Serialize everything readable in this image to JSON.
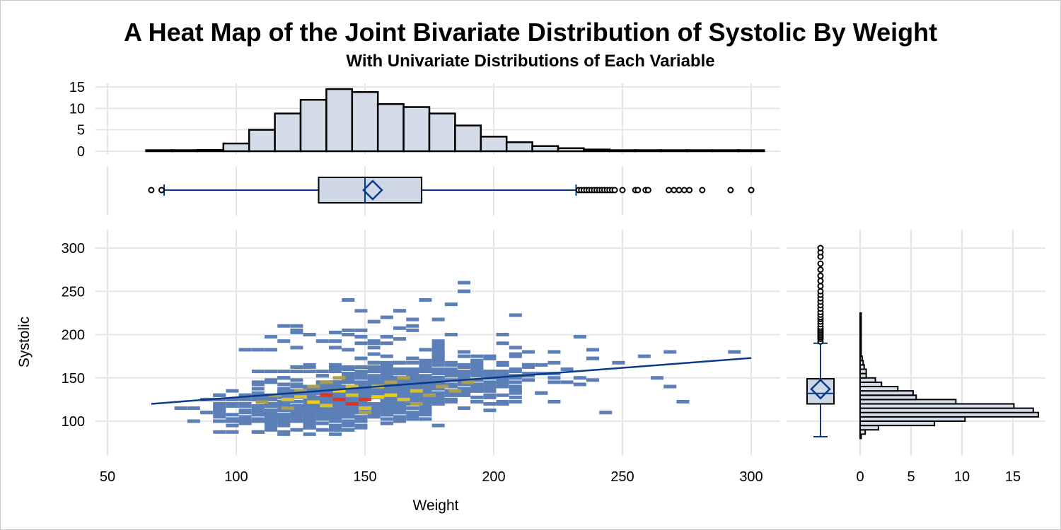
{
  "chart_data": {
    "type": "heatmap",
    "title": "A Heat Map of the Joint Bivariate Distribution of Systolic By Weight",
    "subtitle": "With Univariate Distributions of Each Variable",
    "xlabel": "Weight",
    "ylabel": "Systolic",
    "x_range": [
      50,
      300
    ],
    "y_range": [
      80,
      320
    ],
    "x_ticks": [
      "50",
      "100",
      "150",
      "200",
      "250",
      "300"
    ],
    "y_ticks": [
      "100",
      "150",
      "200",
      "250",
      "300"
    ],
    "grid": true,
    "colors": {
      "low": "#5b7fb6",
      "mid": "#a8a050",
      "high": "#f0d000",
      "peak": "#e8301a",
      "line": "#0a3a8c",
      "bar_fill": "#d4dcea"
    },
    "heat_cells": [
      [
        135,
        130,
        5
      ],
      [
        140,
        125,
        5
      ],
      [
        150,
        125,
        5
      ],
      [
        145,
        120,
        5
      ],
      [
        155,
        128,
        4
      ],
      [
        140,
        135,
        4
      ],
      [
        130,
        122,
        4
      ],
      [
        160,
        130,
        4
      ],
      [
        125,
        128,
        3
      ],
      [
        145,
        140,
        3
      ],
      [
        165,
        125,
        3
      ],
      [
        150,
        115,
        3
      ],
      [
        135,
        118,
        3
      ],
      [
        170,
        135,
        3
      ],
      [
        120,
        125,
        3
      ],
      [
        155,
        140,
        3
      ],
      [
        145,
        130,
        3
      ],
      [
        115,
        130,
        2
      ],
      [
        130,
        140,
        2
      ],
      [
        160,
        145,
        2
      ],
      [
        175,
        130,
        2
      ],
      [
        180,
        140,
        2
      ],
      [
        120,
        115,
        2
      ],
      [
        140,
        150,
        2
      ],
      [
        165,
        150,
        2
      ],
      [
        150,
        110,
        2
      ],
      [
        185,
        135,
        2
      ],
      [
        110,
        122,
        2
      ],
      [
        135,
        145,
        2
      ],
      [
        170,
        120,
        2
      ],
      [
        125,
        135,
        2
      ],
      [
        190,
        145,
        2
      ]
    ],
    "fit_line": {
      "x": [
        67,
        300
      ],
      "y": [
        120,
        173
      ]
    },
    "x_histogram": {
      "bin_start": 65,
      "bin_width": 10,
      "percents": [
        0.05,
        0.1,
        0.3,
        1.8,
        5.0,
        8.8,
        12.0,
        14.5,
        13.8,
        11.0,
        10.3,
        8.8,
        6.0,
        3.4,
        2.1,
        1.2,
        0.7,
        0.4,
        0.15,
        0.1,
        0.05,
        0.05,
        0.05,
        0.05
      ],
      "ticks": [
        "0",
        "5",
        "10",
        "15"
      ]
    },
    "x_box": {
      "whisker_low": 72,
      "q1": 132,
      "median": 150,
      "mean": 153,
      "q3": 172,
      "whisker_high": 232,
      "outliers": [
        67,
        71,
        233,
        234,
        235,
        236,
        237,
        238,
        239,
        240,
        241,
        242,
        243,
        244,
        245,
        246,
        247,
        250,
        255,
        256,
        259,
        260,
        268,
        270,
        272,
        274,
        276,
        281,
        292,
        300
      ]
    },
    "y_histogram": {
      "bin_start": 80,
      "bin_width": 5,
      "percents": [
        0.1,
        0.5,
        1.8,
        7.3,
        10.3,
        17.5,
        17.0,
        15.1,
        9.4,
        5.5,
        5.2,
        3.7,
        2.1,
        1.5,
        0.6,
        0.6,
        0.4,
        0.3,
        0.2,
        0.1,
        0.1,
        0.05,
        0.05,
        0.05,
        0.05,
        0.05,
        0.05,
        0.05,
        0.05
      ],
      "ticks": [
        "0",
        "5",
        "10",
        "15"
      ]
    },
    "y_box": {
      "whisker_low": 82,
      "q1": 120,
      "median": 132,
      "mean": 137,
      "q3": 149,
      "whisker_high": 190,
      "outliers": [
        192,
        195,
        197,
        199,
        201,
        203,
        205,
        207,
        209,
        212,
        215,
        218,
        220,
        223,
        226,
        230,
        234,
        238,
        242,
        246,
        250,
        256,
        262,
        268,
        275,
        282,
        290,
        295,
        300
      ]
    }
  }
}
